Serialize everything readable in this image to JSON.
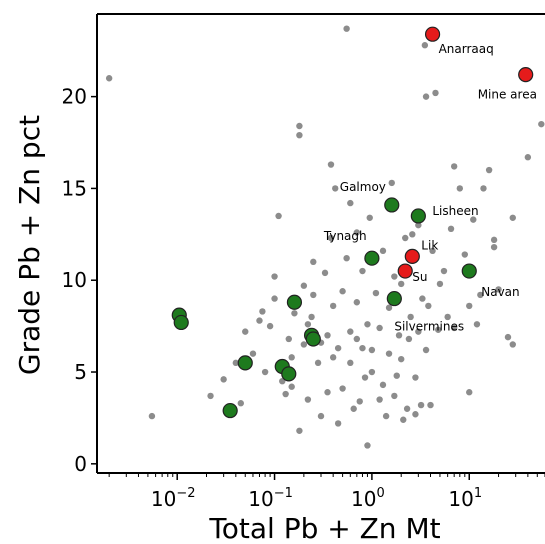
{
  "chart_data": {
    "type": "scatter",
    "xscale": "log",
    "xlabel": "Total Pb + Zn Mt",
    "ylabel": "Grade Pb + Zn pct",
    "xlim": [
      0.0015,
      60
    ],
    "ylim": [
      -0.5,
      24.5
    ],
    "yticks": [
      0,
      5,
      10,
      15,
      20
    ],
    "xticks": [
      {
        "value": 0.01,
        "base": "10",
        "exp": "−2"
      },
      {
        "value": 0.1,
        "base": "10",
        "exp": "−1"
      },
      {
        "value": 1,
        "base": "10",
        "exp": "0"
      },
      {
        "value": 10,
        "base": "10",
        "exp": "1"
      }
    ],
    "grid": false,
    "colors": {
      "background_points": "#8c8c8c",
      "irish_deposits": "#1e7a1e",
      "highlighted": "#e51b1b",
      "marker_edge": "#222222"
    },
    "background_points": [
      [
        0.002,
        21.0
      ],
      [
        0.0055,
        2.6
      ],
      [
        0.022,
        3.7
      ],
      [
        0.03,
        4.6
      ],
      [
        0.04,
        5.5
      ],
      [
        0.045,
        3.3
      ],
      [
        0.05,
        7.2
      ],
      [
        0.06,
        6.0
      ],
      [
        0.07,
        7.8
      ],
      [
        0.075,
        8.3
      ],
      [
        0.08,
        5.0
      ],
      [
        0.09,
        7.5
      ],
      [
        0.1,
        10.2
      ],
      [
        0.1,
        9.0
      ],
      [
        0.11,
        13.5
      ],
      [
        0.12,
        4.5
      ],
      [
        0.13,
        3.8
      ],
      [
        0.14,
        6.8
      ],
      [
        0.15,
        4.2
      ],
      [
        0.15,
        5.8
      ],
      [
        0.16,
        8.2
      ],
      [
        0.18,
        1.8
      ],
      [
        0.18,
        17.9
      ],
      [
        0.18,
        18.4
      ],
      [
        0.2,
        6.5
      ],
      [
        0.2,
        9.7
      ],
      [
        0.22,
        3.5
      ],
      [
        0.22,
        7.6
      ],
      [
        0.24,
        8.0
      ],
      [
        0.25,
        9.2
      ],
      [
        0.25,
        11.0
      ],
      [
        0.28,
        5.5
      ],
      [
        0.3,
        2.6
      ],
      [
        0.3,
        6.6
      ],
      [
        0.33,
        10.4
      ],
      [
        0.35,
        3.9
      ],
      [
        0.35,
        7.0
      ],
      [
        0.38,
        12.3
      ],
      [
        0.38,
        16.3
      ],
      [
        0.4,
        5.8
      ],
      [
        0.4,
        8.6
      ],
      [
        0.42,
        15.0
      ],
      [
        0.45,
        2.2
      ],
      [
        0.45,
        6.3
      ],
      [
        0.5,
        4.1
      ],
      [
        0.5,
        9.4
      ],
      [
        0.55,
        23.7
      ],
      [
        0.55,
        11.2
      ],
      [
        0.6,
        7.2
      ],
      [
        0.6,
        14.2
      ],
      [
        0.6,
        5.5
      ],
      [
        0.65,
        3.0
      ],
      [
        0.7,
        6.8
      ],
      [
        0.7,
        12.6
      ],
      [
        0.7,
        8.8
      ],
      [
        0.75,
        3.4
      ],
      [
        0.8,
        6.3
      ],
      [
        0.8,
        10.5
      ],
      [
        0.85,
        4.7
      ],
      [
        0.9,
        7.6
      ],
      [
        0.9,
        1.0
      ],
      [
        0.95,
        13.4
      ],
      [
        1.0,
        5.0
      ],
      [
        1.0,
        6.2
      ],
      [
        1.1,
        9.3
      ],
      [
        1.2,
        3.5
      ],
      [
        1.2,
        7.4
      ],
      [
        1.3,
        4.3
      ],
      [
        1.3,
        11.6
      ],
      [
        1.4,
        2.6
      ],
      [
        1.5,
        6.0
      ],
      [
        1.5,
        8.5
      ],
      [
        1.6,
        15.3
      ],
      [
        1.7,
        3.7
      ],
      [
        1.7,
        10.2
      ],
      [
        1.8,
        4.8
      ],
      [
        1.9,
        7.0
      ],
      [
        2.0,
        5.7
      ],
      [
        2.0,
        9.8
      ],
      [
        2.1,
        2.4
      ],
      [
        2.2,
        12.3
      ],
      [
        2.3,
        3.0
      ],
      [
        2.4,
        6.8
      ],
      [
        2.5,
        8.0
      ],
      [
        2.6,
        12.5
      ],
      [
        2.8,
        2.7
      ],
      [
        2.8,
        4.7
      ],
      [
        3.0,
        13.0
      ],
      [
        3.0,
        7.2
      ],
      [
        3.2,
        3.2
      ],
      [
        3.3,
        9.0
      ],
      [
        3.5,
        22.8
      ],
      [
        3.6,
        20.0
      ],
      [
        3.6,
        6.2
      ],
      [
        3.8,
        8.6
      ],
      [
        4.0,
        3.2
      ],
      [
        4.2,
        11.6
      ],
      [
        4.5,
        20.2
      ],
      [
        4.8,
        7.3
      ],
      [
        5.0,
        9.8
      ],
      [
        5.5,
        10.5
      ],
      [
        6.0,
        8.0
      ],
      [
        6.5,
        12.8
      ],
      [
        7.0,
        16.2
      ],
      [
        7.0,
        7.4
      ],
      [
        8.0,
        15.0
      ],
      [
        9.0,
        11.4
      ],
      [
        10.0,
        3.9
      ],
      [
        10.0,
        8.6
      ],
      [
        11.0,
        13.3
      ],
      [
        12.0,
        7.6
      ],
      [
        13.0,
        9.2
      ],
      [
        14.0,
        15.0
      ],
      [
        16.0,
        16.0
      ],
      [
        18.0,
        12.2
      ],
      [
        18.0,
        11.8
      ],
      [
        20.0,
        9.5
      ],
      [
        25.0,
        6.9
      ],
      [
        28.0,
        13.4
      ],
      [
        28.0,
        6.5
      ],
      [
        40.0,
        16.7
      ],
      [
        55.0,
        18.5
      ]
    ],
    "irish_deposits": [
      {
        "x": 0.0105,
        "y": 8.1,
        "label": ""
      },
      {
        "x": 0.011,
        "y": 7.7,
        "label": ""
      },
      {
        "x": 0.035,
        "y": 2.9,
        "label": ""
      },
      {
        "x": 0.05,
        "y": 5.5,
        "label": ""
      },
      {
        "x": 0.12,
        "y": 5.3,
        "label": ""
      },
      {
        "x": 0.14,
        "y": 4.9,
        "label": ""
      },
      {
        "x": 0.16,
        "y": 8.8,
        "label": ""
      },
      {
        "x": 0.24,
        "y": 7.0,
        "label": ""
      },
      {
        "x": 0.25,
        "y": 6.8,
        "label": ""
      },
      {
        "x": 1.0,
        "y": 11.2,
        "label": "Tynagh"
      },
      {
        "x": 1.6,
        "y": 14.1,
        "label": "Galmoy"
      },
      {
        "x": 1.7,
        "y": 9.0,
        "label": "Silvermines"
      },
      {
        "x": 3.0,
        "y": 13.5,
        "label": "Lisheen"
      },
      {
        "x": 10.0,
        "y": 10.5,
        "label": "Navan"
      }
    ],
    "highlighted": [
      {
        "x": 4.2,
        "y": 23.4,
        "label": "Anarraaq"
      },
      {
        "x": 38.0,
        "y": 21.2,
        "label": "Mine area"
      },
      {
        "x": 2.6,
        "y": 11.3,
        "label": "Lik"
      },
      {
        "x": 2.2,
        "y": 10.5,
        "label": "Su"
      }
    ]
  }
}
